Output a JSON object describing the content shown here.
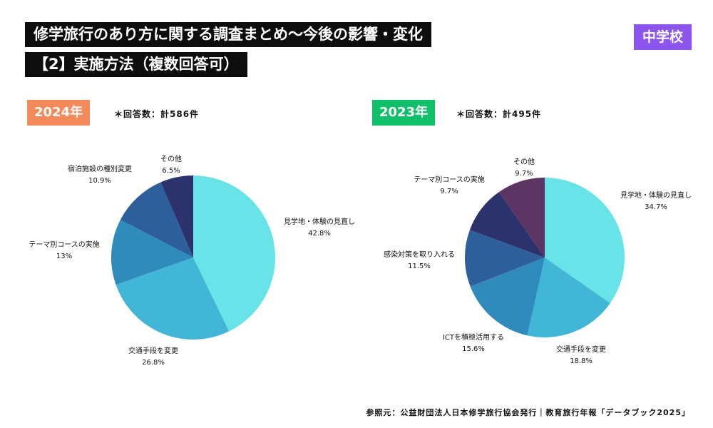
{
  "header": {
    "title_line1": "修学旅行のあり方に関する調査まとめ〜今後の影響・変化",
    "title_line2": "【2】実施方法（複数回答可）",
    "school_level": "中学校"
  },
  "colors": {
    "badge_purple": "#8c55f0",
    "badge_2024": "#f48a5a",
    "badge_2023": "#10bf6a",
    "slices": [
      "#68e3e8",
      "#42b6d6",
      "#2f8bbb",
      "#2d5f9a",
      "#2c326b",
      "#5c3565"
    ]
  },
  "chart_data": [
    {
      "type": "pie",
      "title": "2024年",
      "note": "＊回答数：計586件",
      "labels": [
        "見学地・体験の見直し",
        "交通手段を変更",
        "テーマ別コースの実施",
        "宿泊施設の種別変更",
        "その他"
      ],
      "values": [
        42.8,
        26.8,
        13.0,
        10.9,
        6.5
      ],
      "value_labels": [
        "42.8%",
        "26.8%",
        "13%",
        "10.9%",
        "6.5%"
      ],
      "color_index": [
        0,
        1,
        2,
        3,
        4
      ]
    },
    {
      "type": "pie",
      "title": "2023年",
      "note": "＊回答数：計495件",
      "labels": [
        "見学地・体験の見直し",
        "交通手段を変更",
        "ICTを積極活用する",
        "感染対策を取り入れる",
        "テーマ別コースの実施",
        "その他"
      ],
      "values": [
        34.7,
        18.8,
        15.6,
        11.5,
        9.7,
        9.7
      ],
      "value_labels": [
        "34.7%",
        "18.8%",
        "15.6%",
        "11.5%",
        "9.7%",
        "9.7%"
      ],
      "color_index": [
        0,
        1,
        2,
        3,
        4,
        5
      ]
    }
  ],
  "footer": {
    "source": "参照元：公益財団法人日本修学旅行協会発行｜教育旅行年報「データブック2025」"
  }
}
